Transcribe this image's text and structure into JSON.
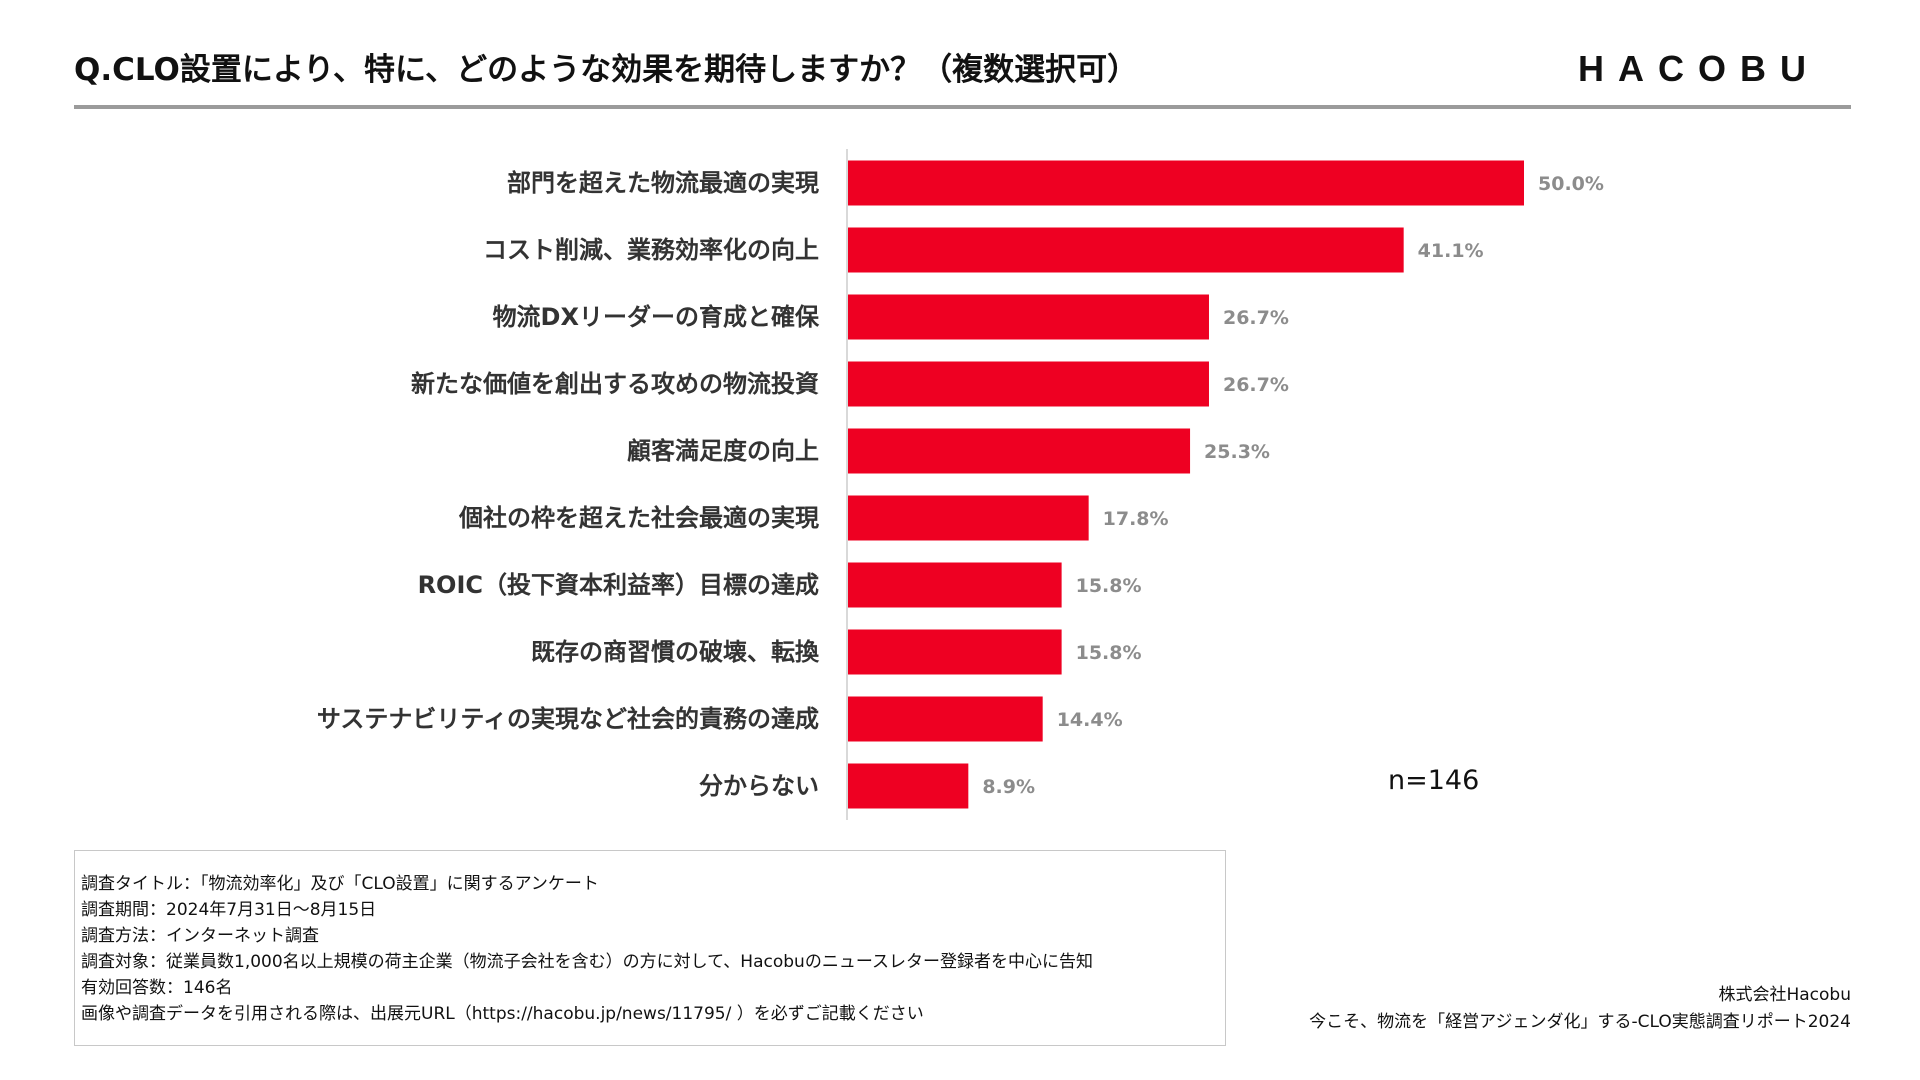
{
  "header": {
    "title": "Q.CLO設置により、特に、どのような効果を期待しますか？（複数選択可）",
    "logo": "HACOBU"
  },
  "chart_data": {
    "type": "bar",
    "orientation": "horizontal",
    "categories": [
      "部門を超えた物流最適の実現",
      "コスト削減、業務効率化の向上",
      "物流DXリーダーの育成と確保",
      "新たな価値を創出する攻めの物流投資",
      "顧客満足度の向上",
      "個社の枠を超えた社会最適の実現",
      "ROIC（投下資本利益率）目標の達成",
      "既存の商習慣の破壊、転換",
      "サステナビリティの実現など社会的責務の達成",
      "分からない"
    ],
    "values": [
      50.0,
      41.1,
      26.7,
      26.7,
      25.3,
      17.8,
      15.8,
      15.8,
      14.4,
      8.9
    ],
    "value_labels": [
      "50.0%",
      "41.1%",
      "26.7%",
      "26.7%",
      "25.3%",
      "17.8%",
      "15.8%",
      "15.8%",
      "14.4%",
      "8.9%"
    ],
    "unit": "%",
    "xlim": [
      0,
      50
    ],
    "grid": false,
    "bar_color": "#EE0022",
    "annotation": "n=146"
  },
  "notes": [
    "調査タイトル：「物流効率化」及び「CLO設置」に関するアンケート",
    "調査期間：2024年7月31日〜8月15日",
    "調査方法：インターネット調査",
    "調査対象：従業員数1,000名以上規模の荷主企業（物流子会社を含む）の方に対して、Hacobuのニュースレター登録者を中心に告知",
    "有効回答数：146名",
    "画像や調査データを引用される際は、出展元URL（https://hacobu.jp/news/11795/ ）を必ずご記載ください"
  ],
  "credit": {
    "company": "株式会社Hacobu",
    "report": "今こそ、物流を「経営アジェンダ化」する-CLO実態調査リポート2024"
  }
}
